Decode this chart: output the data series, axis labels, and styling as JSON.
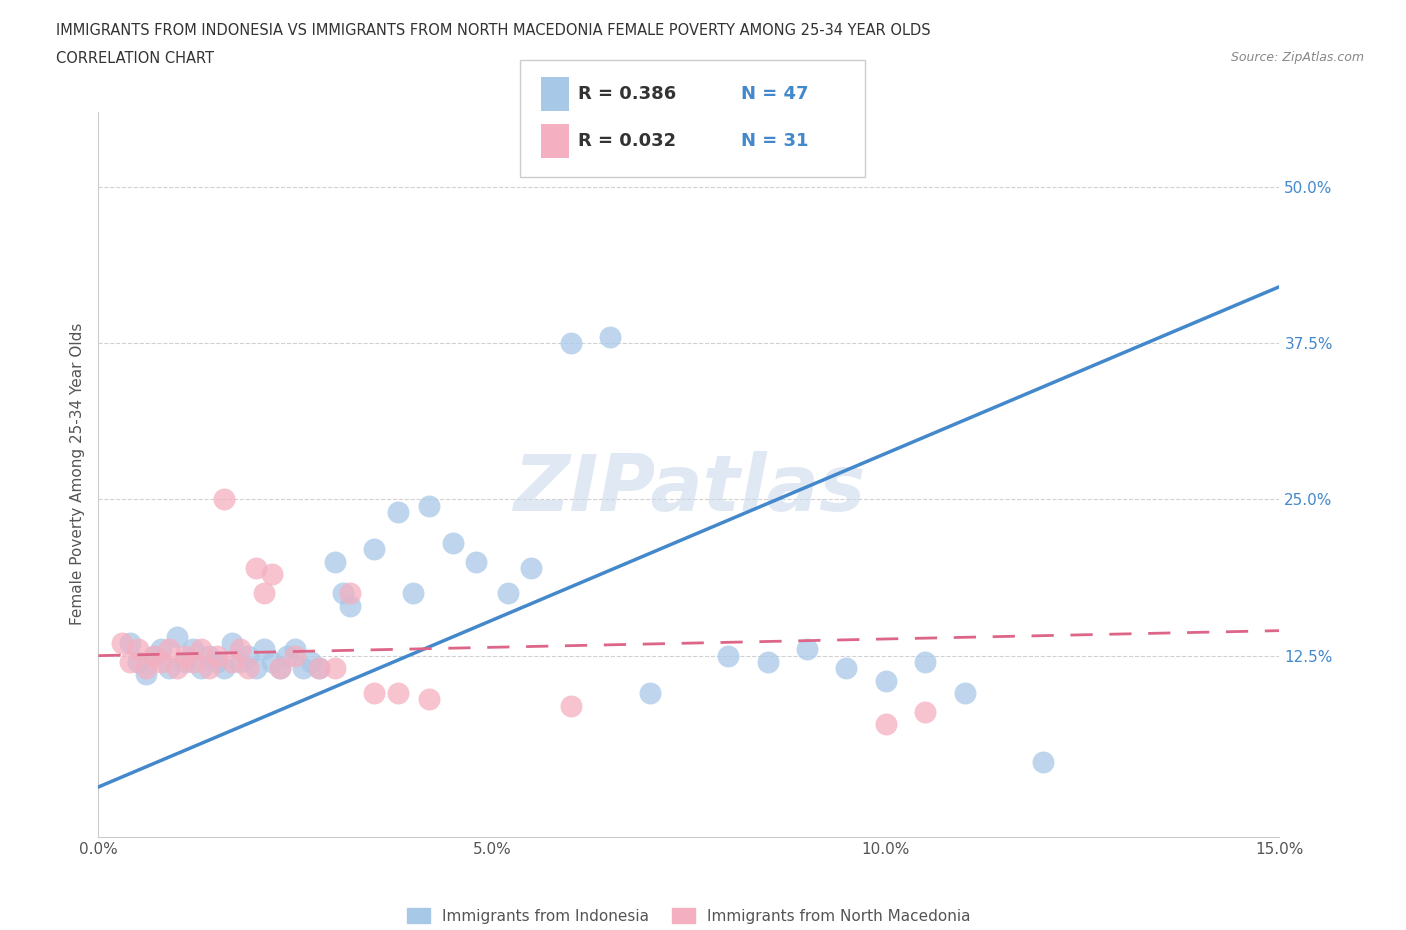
{
  "title_line1": "IMMIGRANTS FROM INDONESIA VS IMMIGRANTS FROM NORTH MACEDONIA FEMALE POVERTY AMONG 25-34 YEAR OLDS",
  "title_line2": "CORRELATION CHART",
  "source_text": "Source: ZipAtlas.com",
  "ylabel": "Female Poverty Among 25-34 Year Olds",
  "xlim": [
    0.0,
    0.15
  ],
  "ylim": [
    -0.02,
    0.56
  ],
  "xticks": [
    0.0,
    0.05,
    0.1,
    0.15
  ],
  "xticklabels": [
    "0.0%",
    "5.0%",
    "10.0%",
    "15.0%"
  ],
  "yticks": [
    0.125,
    0.25,
    0.375,
    0.5
  ],
  "yticklabels": [
    "12.5%",
    "25.0%",
    "37.5%",
    "50.0%"
  ],
  "legend_r1": "R = 0.386",
  "legend_n1": "N = 47",
  "legend_r2": "R = 0.032",
  "legend_n2": "N = 31",
  "color_indonesia": "#a8c8e8",
  "color_north_macedonia": "#f4afc0",
  "color_line_indonesia": "#4488cc",
  "color_line_north_macedonia": "#dd6688",
  "watermark": "ZIPatlas",
  "legend_label1": "Immigrants from Indonesia",
  "legend_label2": "Immigrants from North Macedonia",
  "scatter_indonesia_x": [
    0.004,
    0.005,
    0.006,
    0.007,
    0.008,
    0.009,
    0.01,
    0.011,
    0.012,
    0.013,
    0.014,
    0.015,
    0.016,
    0.017,
    0.018,
    0.019,
    0.02,
    0.021,
    0.022,
    0.023,
    0.024,
    0.025,
    0.026,
    0.027,
    0.028,
    0.03,
    0.031,
    0.032,
    0.035,
    0.038,
    0.04,
    0.042,
    0.045,
    0.048,
    0.052,
    0.055,
    0.06,
    0.065,
    0.07,
    0.08,
    0.085,
    0.09,
    0.095,
    0.1,
    0.105,
    0.11,
    0.12
  ],
  "scatter_indonesia_y": [
    0.135,
    0.12,
    0.11,
    0.125,
    0.13,
    0.115,
    0.14,
    0.12,
    0.13,
    0.115,
    0.125,
    0.12,
    0.115,
    0.135,
    0.12,
    0.125,
    0.115,
    0.13,
    0.12,
    0.115,
    0.125,
    0.13,
    0.115,
    0.12,
    0.115,
    0.2,
    0.175,
    0.165,
    0.21,
    0.24,
    0.175,
    0.245,
    0.215,
    0.2,
    0.175,
    0.195,
    0.375,
    0.38,
    0.095,
    0.125,
    0.12,
    0.13,
    0.115,
    0.105,
    0.12,
    0.095,
    0.04
  ],
  "scatter_north_macedonia_x": [
    0.003,
    0.004,
    0.005,
    0.006,
    0.007,
    0.008,
    0.009,
    0.01,
    0.011,
    0.012,
    0.013,
    0.014,
    0.015,
    0.016,
    0.017,
    0.018,
    0.019,
    0.02,
    0.021,
    0.022,
    0.023,
    0.025,
    0.028,
    0.03,
    0.032,
    0.035,
    0.038,
    0.042,
    0.06,
    0.1,
    0.105
  ],
  "scatter_north_macedonia_y": [
    0.135,
    0.12,
    0.13,
    0.115,
    0.125,
    0.12,
    0.13,
    0.115,
    0.125,
    0.12,
    0.13,
    0.115,
    0.125,
    0.25,
    0.12,
    0.13,
    0.115,
    0.195,
    0.175,
    0.19,
    0.115,
    0.125,
    0.115,
    0.115,
    0.175,
    0.095,
    0.095,
    0.09,
    0.085,
    0.07,
    0.08
  ],
  "indo_line_x": [
    0.0,
    0.15
  ],
  "indo_line_y": [
    0.02,
    0.42
  ],
  "mac_line_x": [
    0.0,
    0.15
  ],
  "mac_line_y": [
    0.125,
    0.145
  ]
}
